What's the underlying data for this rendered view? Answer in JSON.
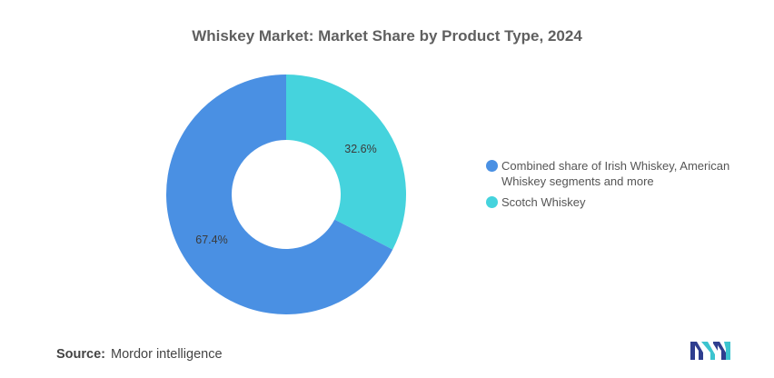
{
  "chart_data": {
    "type": "pie",
    "title": "Whiskey Market: Market Share by Product Type, 2024",
    "donut": true,
    "legend_position": "right",
    "slices": [
      {
        "name": "Scotch Whiskey",
        "value": 32.6,
        "label": "32.6%",
        "color": "#45d3dd"
      },
      {
        "name": "Combined share of Irish Whiskey, American Whiskey segments and more",
        "value": 67.4,
        "label": "67.4%",
        "color": "#4a90e3"
      }
    ],
    "legend": [
      {
        "label": "Combined share of Irish Whiskey, American Whiskey segments and more",
        "color": "#4a90e3"
      },
      {
        "label": "Scotch Whiskey",
        "color": "#45d3dd"
      }
    ]
  },
  "source": {
    "label": "Source:",
    "text": "Mordor intelligence"
  },
  "logo": {
    "icon": "mordor-logo-icon",
    "colors": [
      "#2f3e8f",
      "#3cc4cf"
    ]
  }
}
